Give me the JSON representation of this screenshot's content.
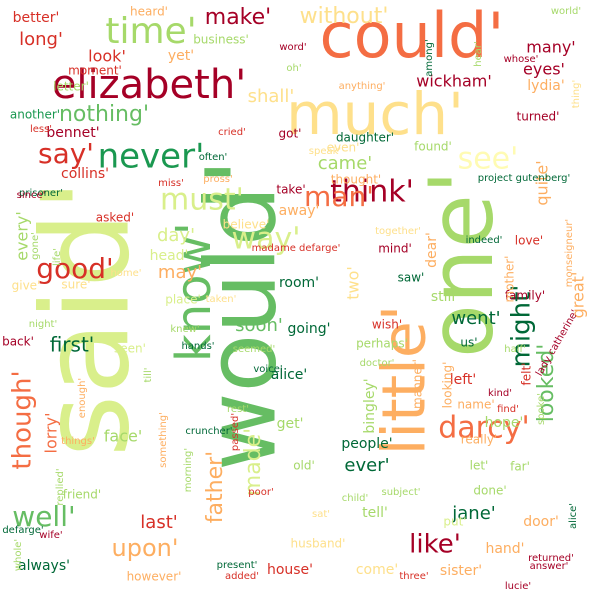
{
  "words": [
    {
      "text": "said'",
      "color": "#d9ef8b"
    },
    {
      "text": "would'",
      "color": "#66bd63"
    },
    {
      "text": "one'",
      "color": "#a6d96a"
    },
    {
      "text": "could'",
      "color": "#f46d43"
    },
    {
      "text": "much'",
      "color": "#fee08b"
    },
    {
      "text": "little'",
      "color": "#fdae61"
    },
    {
      "text": "know'",
      "color": "#66bd63"
    },
    {
      "text": "elizabeth'",
      "color": "#a50026"
    },
    {
      "text": "time'",
      "color": "#a6d96a"
    },
    {
      "text": "never'",
      "color": "#1a9850"
    },
    {
      "text": "say'",
      "color": "#d73027"
    },
    {
      "text": "see'",
      "color": "#fffbb3"
    },
    {
      "text": "think'",
      "color": "#a50026"
    },
    {
      "text": "man'",
      "color": "#f46d43"
    },
    {
      "text": "must'",
      "color": "#d9ef8b"
    },
    {
      "text": "way'",
      "color": "#d9ef8b"
    },
    {
      "text": "good'",
      "color": "#d73027"
    },
    {
      "text": "darcy'",
      "color": "#f46d43"
    },
    {
      "text": "might'",
      "color": "#006837"
    },
    {
      "text": "looked'",
      "color": "#66bd63"
    },
    {
      "text": "though'",
      "color": "#f46d43"
    },
    {
      "text": "father'",
      "color": "#fdae61"
    },
    {
      "text": "made'",
      "color": "#d9ef8b"
    },
    {
      "text": "well'",
      "color": "#66bd63"
    },
    {
      "text": "upon'",
      "color": "#fdae61"
    },
    {
      "text": "like'",
      "color": "#a50026"
    },
    {
      "text": "nothing'",
      "color": "#66bd63"
    },
    {
      "text": "make'",
      "color": "#a50026"
    },
    {
      "text": "without'",
      "color": "#fee08b"
    },
    {
      "text": "shall'",
      "color": "#fee08b"
    },
    {
      "text": "wickham'",
      "color": "#a50026"
    },
    {
      "text": "lydia'",
      "color": "#fdae61"
    },
    {
      "text": "bennet'",
      "color": "#a50026"
    },
    {
      "text": "long'",
      "color": "#d73027"
    },
    {
      "text": "look'",
      "color": "#d73027"
    },
    {
      "text": "yet'",
      "color": "#fdae61"
    },
    {
      "text": "many'",
      "color": "#a50026"
    },
    {
      "text": "eyes'",
      "color": "#a50026"
    },
    {
      "text": "came'",
      "color": "#a6d96a"
    },
    {
      "text": "collins'",
      "color": "#d73027"
    },
    {
      "text": "quite'",
      "color": "#fdae61"
    },
    {
      "text": "great'",
      "color": "#fdae61"
    },
    {
      "text": "every'",
      "color": "#a6d96a"
    },
    {
      "text": "day'",
      "color": "#d9ef8b"
    },
    {
      "text": "may'",
      "color": "#fdae61"
    },
    {
      "text": "two'",
      "color": "#fee08b"
    },
    {
      "text": "first'",
      "color": "#006837"
    },
    {
      "text": "soon'",
      "color": "#66bd63"
    },
    {
      "text": "room'",
      "color": "#006837"
    },
    {
      "text": "going'",
      "color": "#006837"
    },
    {
      "text": "lorry'",
      "color": "#f46d43"
    },
    {
      "text": "face'",
      "color": "#a6d96a"
    },
    {
      "text": "jane'",
      "color": "#006837"
    },
    {
      "text": "ever'",
      "color": "#006837"
    },
    {
      "text": "people'",
      "color": "#006837"
    },
    {
      "text": "last'",
      "color": "#d73027"
    },
    {
      "text": "alice'",
      "color": "#006837"
    },
    {
      "text": "went'",
      "color": "#006837"
    },
    {
      "text": "bingley'",
      "color": "#a6d96a"
    },
    {
      "text": "hope'",
      "color": "#a6d96a"
    },
    {
      "text": "sister'",
      "color": "#fdae61"
    },
    {
      "text": "come'",
      "color": "#fee08b"
    },
    {
      "text": "house'",
      "color": "#d73027"
    },
    {
      "text": "always'",
      "color": "#006837"
    },
    {
      "text": "however'",
      "color": "#fdae61"
    },
    {
      "text": "hand'",
      "color": "#fdae61"
    },
    {
      "text": "friend'",
      "color": "#a6d96a"
    },
    {
      "text": "get'",
      "color": "#a6d96a"
    },
    {
      "text": "dear'",
      "color": "#fdae61"
    },
    {
      "text": "still'",
      "color": "#a6d96a"
    },
    {
      "text": "family'",
      "color": "#a50026"
    },
    {
      "text": "mind'",
      "color": "#a50026"
    },
    {
      "text": "saw'",
      "color": "#006837"
    },
    {
      "text": "place'",
      "color": "#d9ef8b"
    },
    {
      "text": "head'",
      "color": "#d9ef8b"
    },
    {
      "text": "away'",
      "color": "#fdae61"
    },
    {
      "text": "take'",
      "color": "#a50026"
    },
    {
      "text": "thought'",
      "color": "#fdae61"
    },
    {
      "text": "even'",
      "color": "#fee08b"
    },
    {
      "text": "found'",
      "color": "#a6d96a"
    },
    {
      "text": "daughter'",
      "color": "#006837"
    },
    {
      "text": "got'",
      "color": "#a50026"
    },
    {
      "text": "better'",
      "color": "#d73027"
    },
    {
      "text": "another'",
      "color": "#1a9850"
    },
    {
      "text": "let'",
      "color": "#a6d96a"
    },
    {
      "text": "far'",
      "color": "#a6d96a"
    },
    {
      "text": "old'",
      "color": "#a6d96a"
    },
    {
      "text": "tell'",
      "color": "#a6d96a"
    },
    {
      "text": "done'",
      "color": "#a6d96a"
    },
    {
      "text": "door'",
      "color": "#fdae61"
    },
    {
      "text": "put'",
      "color": "#d9ef8b"
    },
    {
      "text": "husband'",
      "color": "#fee08b"
    },
    {
      "text": "back'",
      "color": "#a50026"
    },
    {
      "text": "seen'",
      "color": "#d9ef8b"
    },
    {
      "text": "give'",
      "color": "#fee08b"
    },
    {
      "text": "sure'",
      "color": "#fee08b"
    },
    {
      "text": "us'",
      "color": "#006837"
    },
    {
      "text": "left'",
      "color": "#d73027"
    },
    {
      "text": "manner'",
      "color": "#fdae61"
    },
    {
      "text": "looking'",
      "color": "#fdae61"
    },
    {
      "text": "perhaps'",
      "color": "#a6d96a"
    },
    {
      "text": "wish'",
      "color": "#d73027"
    },
    {
      "text": "really'",
      "color": "#fdae61"
    },
    {
      "text": "name'",
      "color": "#fdae61"
    },
    {
      "text": "felt'",
      "color": "#d73027"
    },
    {
      "text": "heard'",
      "color": "#fdae61"
    },
    {
      "text": "letter'",
      "color": "#a6d96a"
    },
    {
      "text": "moment'",
      "color": "#d73027"
    },
    {
      "text": "business'",
      "color": "#a6d96a"
    },
    {
      "text": "oh'",
      "color": "#a6d96a"
    },
    {
      "text": "among'",
      "color": "#006837"
    },
    {
      "text": "anything'",
      "color": "#fdae61"
    },
    {
      "text": "often'",
      "color": "#006837"
    },
    {
      "text": "cried'",
      "color": "#d73027"
    },
    {
      "text": "speak'",
      "color": "#fee08b"
    },
    {
      "text": "miss'",
      "color": "#d73027"
    },
    {
      "text": "pross'",
      "color": "#fdae61"
    },
    {
      "text": "prisoner'",
      "color": "#006837"
    },
    {
      "text": "asked'",
      "color": "#d73027"
    },
    {
      "text": "believe'",
      "color": "#fee08b"
    },
    {
      "text": "love'",
      "color": "#d73027"
    },
    {
      "text": "indeed'",
      "color": "#006837"
    },
    {
      "text": "together'",
      "color": "#fee08b"
    },
    {
      "text": "turned'",
      "color": "#a50026"
    },
    {
      "text": "project gutenberg'",
      "color": "#006837"
    },
    {
      "text": "since'",
      "color": "#a50026"
    },
    {
      "text": "less'",
      "color": "#d73027"
    },
    {
      "text": "life'",
      "color": "#a6d96a"
    },
    {
      "text": "gone'",
      "color": "#a6d96a"
    },
    {
      "text": "night'",
      "color": "#a6d96a"
    },
    {
      "text": "home'",
      "color": "#fee08b"
    },
    {
      "text": "mother'",
      "color": "#fdae61"
    },
    {
      "text": "madame defarge'",
      "color": "#d73027"
    },
    {
      "text": "monseigneur'",
      "color": "#fdae61"
    },
    {
      "text": "lady catherine'",
      "color": "#a50026"
    },
    {
      "text": "voice'",
      "color": "#006837"
    },
    {
      "text": "seemed'",
      "color": "#a6d96a"
    },
    {
      "text": "doctor'",
      "color": "#a6d96a"
    },
    {
      "text": "kind'",
      "color": "#a50026"
    },
    {
      "text": "spoke'",
      "color": "#a6d96a"
    },
    {
      "text": "half'",
      "color": "#a6d96a"
    },
    {
      "text": "till'",
      "color": "#a6d96a"
    },
    {
      "text": "rest'",
      "color": "#a6d96a"
    },
    {
      "text": "enough'",
      "color": "#fdae61"
    },
    {
      "text": "things'",
      "color": "#fdae61"
    },
    {
      "text": "replied'",
      "color": "#a6d96a"
    },
    {
      "text": "wife'",
      "color": "#a50026"
    },
    {
      "text": "defarge'",
      "color": "#006837"
    },
    {
      "text": "whole'",
      "color": "#a6d96a"
    },
    {
      "text": "something'",
      "color": "#fdae61"
    },
    {
      "text": "morning'",
      "color": "#a6d96a"
    },
    {
      "text": "cruncher'",
      "color": "#006837"
    },
    {
      "text": "passed'",
      "color": "#d73027"
    },
    {
      "text": "poor'",
      "color": "#d73027"
    },
    {
      "text": "present'",
      "color": "#006837"
    },
    {
      "text": "added'",
      "color": "#d73027"
    },
    {
      "text": "subject'",
      "color": "#a6d96a"
    },
    {
      "text": "child'",
      "color": "#a6d96a"
    },
    {
      "text": "returned'",
      "color": "#a50026"
    },
    {
      "text": "answer'",
      "color": "#a50026"
    },
    {
      "text": "three'",
      "color": "#d73027"
    },
    {
      "text": "lucie'",
      "color": "#a50026"
    },
    {
      "text": "sat'",
      "color": "#fee08b"
    },
    {
      "text": "alice'",
      "color": "#006837"
    },
    {
      "text": "find'",
      "color": "#d73027"
    },
    {
      "text": "hands'",
      "color": "#006837"
    },
    {
      "text": "knew'",
      "color": "#a6d96a"
    },
    {
      "text": "taken'",
      "color": "#fee08b"
    },
    {
      "text": "word'",
      "color": "#a50026"
    },
    {
      "text": "hear'",
      "color": "#a6d96a"
    },
    {
      "text": "thing'",
      "color": "#fee08b"
    },
    {
      "text": "world'",
      "color": "#a6d96a"
    },
    {
      "text": "whose'",
      "color": "#a50026"
    }
  ]
}
